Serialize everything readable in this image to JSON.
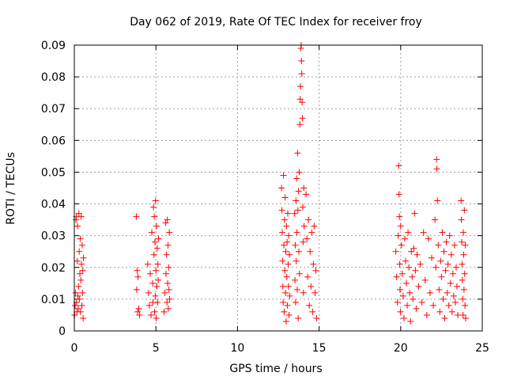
{
  "chart_data": {
    "type": "scatter",
    "title": "Day 062 of 2019, Rate Of TEC Index for receiver froy",
    "xlabel": "GPS time / hours",
    "ylabel": "ROTI / TECUs",
    "xlim": [
      0,
      25
    ],
    "ylim": [
      0,
      0.09
    ],
    "grid": true,
    "marker": "+",
    "color": "#ff0000",
    "x_ticks": [
      0,
      5,
      10,
      15,
      20,
      25
    ],
    "x_tick_labels": [
      "0",
      "5",
      "10",
      "15",
      "20",
      "25"
    ],
    "y_ticks": [
      0,
      0.01,
      0.02,
      0.03,
      0.04,
      0.05,
      0.06,
      0.07,
      0.08,
      0.09
    ],
    "y_tick_labels": [
      "0",
      "0.01",
      "0.02",
      "0.03",
      "0.04",
      "0.05",
      "0.06",
      "0.07",
      "0.08",
      "0.09"
    ],
    "series": [
      {
        "name": "ROTI",
        "points": [
          [
            0.02,
            0.005
          ],
          [
            0.05,
            0.008
          ],
          [
            0.08,
            0.012
          ],
          [
            0.1,
            0.035
          ],
          [
            0.12,
            0.036
          ],
          [
            0.14,
            0.009
          ],
          [
            0.16,
            0.006
          ],
          [
            0.18,
            0.022
          ],
          [
            0.2,
            0.033
          ],
          [
            0.22,
            0.011
          ],
          [
            0.24,
            0.007
          ],
          [
            0.26,
            0.014
          ],
          [
            0.28,
            0.037
          ],
          [
            0.3,
            0.025
          ],
          [
            0.32,
            0.01
          ],
          [
            0.34,
            0.018
          ],
          [
            0.36,
            0.029
          ],
          [
            0.38,
            0.006
          ],
          [
            0.4,
            0.016
          ],
          [
            0.42,
            0.036
          ],
          [
            0.44,
            0.021
          ],
          [
            0.46,
            0.008
          ],
          [
            0.48,
            0.027
          ],
          [
            0.5,
            0.012
          ],
          [
            0.52,
            0.019
          ],
          [
            0.54,
            0.004
          ],
          [
            0.56,
            0.023
          ],
          [
            3.8,
            0.036
          ],
          [
            3.85,
            0.019
          ],
          [
            3.9,
            0.017
          ],
          [
            3.95,
            0.007
          ],
          [
            4.0,
            0.005
          ],
          [
            3.82,
            0.013
          ],
          [
            3.88,
            0.006
          ],
          [
            4.5,
            0.021
          ],
          [
            4.55,
            0.012
          ],
          [
            4.6,
            0.008
          ],
          [
            4.65,
            0.018
          ],
          [
            4.7,
            0.005
          ],
          [
            4.75,
            0.031
          ],
          [
            4.8,
            0.015
          ],
          [
            4.82,
            0.009
          ],
          [
            4.85,
            0.039
          ],
          [
            4.88,
            0.024
          ],
          [
            4.9,
            0.036
          ],
          [
            4.92,
            0.006
          ],
          [
            4.94,
            0.028
          ],
          [
            4.96,
            0.011
          ],
          [
            4.98,
            0.041
          ],
          [
            5.0,
            0.019
          ],
          [
            5.02,
            0.004
          ],
          [
            5.04,
            0.033
          ],
          [
            5.06,
            0.014
          ],
          [
            5.08,
            0.026
          ],
          [
            5.1,
            0.009
          ],
          [
            5.12,
            0.021
          ],
          [
            5.14,
            0.016
          ],
          [
            5.16,
            0.029
          ],
          [
            5.5,
            0.006
          ],
          [
            5.55,
            0.012
          ],
          [
            5.6,
            0.034
          ],
          [
            5.62,
            0.018
          ],
          [
            5.65,
            0.024
          ],
          [
            5.68,
            0.009
          ],
          [
            5.7,
            0.035
          ],
          [
            5.72,
            0.015
          ],
          [
            5.74,
            0.027
          ],
          [
            5.76,
            0.007
          ],
          [
            5.78,
            0.02
          ],
          [
            5.8,
            0.013
          ],
          [
            5.82,
            0.031
          ],
          [
            5.84,
            0.01
          ],
          [
            12.7,
            0.045
          ],
          [
            12.72,
            0.038
          ],
          [
            12.74,
            0.031
          ],
          [
            12.76,
            0.022
          ],
          [
            12.78,
            0.014
          ],
          [
            12.8,
            0.009
          ],
          [
            12.82,
            0.049
          ],
          [
            12.84,
            0.027
          ],
          [
            12.86,
            0.006
          ],
          [
            12.88,
            0.035
          ],
          [
            12.9,
            0.019
          ],
          [
            12.92,
            0.042
          ],
          [
            12.94,
            0.012
          ],
          [
            12.96,
            0.025
          ],
          [
            12.98,
            0.003
          ],
          [
            13.0,
            0.033
          ],
          [
            13.02,
            0.017
          ],
          [
            13.04,
            0.028
          ],
          [
            13.06,
            0.008
          ],
          [
            13.08,
            0.037
          ],
          [
            13.1,
            0.021
          ],
          [
            13.12,
            0.014
          ],
          [
            13.14,
            0.03
          ],
          [
            13.16,
            0.005
          ],
          [
            13.18,
            0.024
          ],
          [
            13.2,
            0.011
          ],
          [
            13.5,
            0.037
          ],
          [
            13.52,
            0.016
          ],
          [
            13.54,
            0.027
          ],
          [
            13.56,
            0.009
          ],
          [
            13.58,
            0.041
          ],
          [
            13.6,
            0.022
          ],
          [
            13.62,
            0.048
          ],
          [
            13.64,
            0.031
          ],
          [
            13.66,
            0.013
          ],
          [
            13.68,
            0.056
          ],
          [
            13.7,
            0.038
          ],
          [
            13.72,
            0.004
          ],
          [
            13.74,
            0.044
          ],
          [
            13.76,
            0.025
          ],
          [
            13.78,
            0.05
          ],
          [
            13.8,
            0.018
          ],
          [
            13.82,
            0.065
          ],
          [
            13.84,
            0.073
          ],
          [
            13.86,
            0.077
          ],
          [
            13.88,
            0.089
          ],
          [
            13.9,
            0.09
          ],
          [
            13.92,
            0.085
          ],
          [
            13.94,
            0.081
          ],
          [
            13.96,
            0.072
          ],
          [
            13.98,
            0.067
          ],
          [
            14.0,
            0.039
          ],
          [
            14.02,
            0.028
          ],
          [
            14.04,
            0.012
          ],
          [
            14.06,
            0.045
          ],
          [
            14.08,
            0.033
          ],
          [
            14.2,
            0.043
          ],
          [
            14.25,
            0.029
          ],
          [
            14.3,
            0.017
          ],
          [
            14.35,
            0.035
          ],
          [
            14.4,
            0.008
          ],
          [
            14.45,
            0.025
          ],
          [
            14.5,
            0.014
          ],
          [
            14.55,
            0.031
          ],
          [
            14.6,
            0.006
          ],
          [
            14.65,
            0.021
          ],
          [
            14.7,
            0.033
          ],
          [
            14.75,
            0.012
          ],
          [
            14.8,
            0.019
          ],
          [
            14.85,
            0.004
          ],
          [
            19.7,
            0.025
          ],
          [
            19.75,
            0.017
          ],
          [
            19.8,
            0.009
          ],
          [
            19.85,
            0.03
          ],
          [
            19.88,
            0.052
          ],
          [
            19.9,
            0.043
          ],
          [
            19.92,
            0.036
          ],
          [
            19.94,
            0.021
          ],
          [
            19.96,
            0.013
          ],
          [
            19.98,
            0.006
          ],
          [
            20.0,
            0.033
          ],
          [
            20.05,
            0.027
          ],
          [
            20.1,
            0.018
          ],
          [
            20.15,
            0.011
          ],
          [
            20.2,
            0.004
          ],
          [
            20.25,
            0.029
          ],
          [
            20.3,
            0.022
          ],
          [
            20.35,
            0.015
          ],
          [
            20.4,
            0.008
          ],
          [
            20.45,
            0.031
          ],
          [
            20.5,
            0.02
          ],
          [
            20.55,
            0.012
          ],
          [
            20.6,
            0.003
          ],
          [
            20.65,
            0.025
          ],
          [
            20.7,
            0.017
          ],
          [
            20.75,
            0.01
          ],
          [
            20.8,
            0.026
          ],
          [
            20.85,
            0.037
          ],
          [
            20.9,
            0.019
          ],
          [
            20.95,
            0.007
          ],
          [
            21.0,
            0.024
          ],
          [
            21.1,
            0.014
          ],
          [
            21.2,
            0.021
          ],
          [
            21.3,
            0.009
          ],
          [
            21.4,
            0.031
          ],
          [
            21.5,
            0.016
          ],
          [
            21.6,
            0.005
          ],
          [
            21.7,
            0.029
          ],
          [
            21.8,
            0.012
          ],
          [
            21.9,
            0.023
          ],
          [
            22.0,
            0.008
          ],
          [
            22.1,
            0.035
          ],
          [
            22.15,
            0.02
          ],
          [
            22.2,
            0.054
          ],
          [
            22.22,
            0.051
          ],
          [
            22.25,
            0.041
          ],
          [
            22.3,
            0.027
          ],
          [
            22.35,
            0.013
          ],
          [
            22.4,
            0.006
          ],
          [
            22.45,
            0.022
          ],
          [
            22.5,
            0.017
          ],
          [
            22.55,
            0.031
          ],
          [
            22.6,
            0.01
          ],
          [
            22.65,
            0.025
          ],
          [
            22.7,
            0.004
          ],
          [
            22.75,
            0.019
          ],
          [
            22.8,
            0.028
          ],
          [
            22.85,
            0.012
          ],
          [
            22.9,
            0.021
          ],
          [
            22.95,
            0.008
          ],
          [
            23.0,
            0.03
          ],
          [
            23.05,
            0.015
          ],
          [
            23.1,
            0.024
          ],
          [
            23.15,
            0.006
          ],
          [
            23.2,
            0.018
          ],
          [
            23.25,
            0.011
          ],
          [
            23.3,
            0.027
          ],
          [
            23.35,
            0.009
          ],
          [
            23.4,
            0.02
          ],
          [
            23.45,
            0.014
          ],
          [
            23.5,
            0.005
          ],
          [
            23.7,
            0.041
          ],
          [
            23.72,
            0.035
          ],
          [
            23.74,
            0.028
          ],
          [
            23.76,
            0.021
          ],
          [
            23.78,
            0.016
          ],
          [
            23.8,
            0.01
          ],
          [
            23.82,
            0.005
          ],
          [
            23.84,
            0.031
          ],
          [
            23.86,
            0.024
          ],
          [
            23.88,
            0.013
          ],
          [
            23.9,
            0.038
          ],
          [
            23.92,
            0.018
          ],
          [
            23.94,
            0.008
          ],
          [
            23.96,
            0.027
          ],
          [
            23.98,
            0.004
          ]
        ]
      }
    ]
  }
}
